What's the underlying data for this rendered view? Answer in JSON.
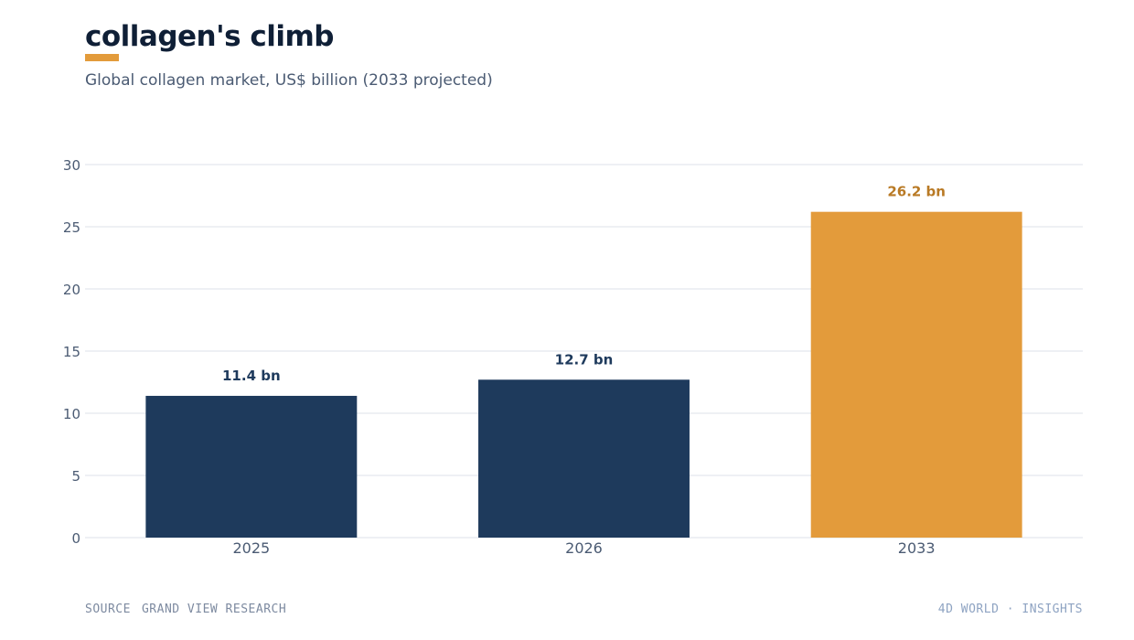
{
  "header": {
    "title": "collagen's climb",
    "subtitle": "Global collagen market, US$ billion (2033 projected)"
  },
  "chart_data": {
    "type": "bar",
    "categories": [
      "2025",
      "2026",
      "2033"
    ],
    "values": [
      11.4,
      12.7,
      26.2
    ],
    "value_labels": [
      "11.4 bn",
      "12.7 bn",
      "26.2 bn"
    ],
    "ylim": [
      0,
      30
    ],
    "yticks": [
      0,
      5,
      10,
      15,
      20,
      25,
      30
    ],
    "grid": true,
    "colors": {
      "actual": "#1e3a5c",
      "projected": "#e39b3b",
      "projected_label": "#b97a25",
      "actual_label": "#1e3a5c",
      "grid": "#e3e7ee",
      "tick_text": "#4b5b73"
    },
    "projected_index": 2
  },
  "footer": {
    "source_label": "SOURCE",
    "source_value": "GRAND VIEW RESEARCH",
    "brand": "4D WORLD · INSIGHTS"
  }
}
